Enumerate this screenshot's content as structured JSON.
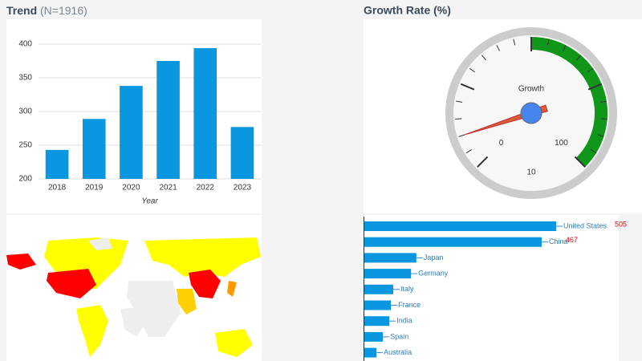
{
  "header": {
    "trend_title": "Trend",
    "trend_count": "(N=1916)",
    "growth_title": "Growth Rate (%)"
  },
  "chart_data": [
    {
      "type": "bar",
      "x_label": "Year",
      "categories": [
        "2018",
        "2019",
        "2020",
        "2021",
        "2022",
        "2023"
      ],
      "values": [
        243,
        289,
        338,
        375,
        394,
        277
      ],
      "color": "#0a97df",
      "ylim": [
        200,
        400
      ],
      "yticks": [
        200,
        250,
        300,
        350,
        400
      ],
      "grid": true
    },
    {
      "type": "gauge",
      "label": "Growth",
      "value": 10,
      "lim": [
        0,
        100
      ],
      "ticks": [
        0,
        100
      ],
      "bands": [
        {
          "from": 50,
          "to": 100,
          "color": "#109618"
        }
      ],
      "needle_color": "#dc5a36"
    },
    {
      "type": "hbar",
      "categories": [
        "United States",
        "China",
        "Japan",
        "Germany",
        "Italy",
        "France",
        "India",
        "Spain",
        "Australia"
      ],
      "values": [
        505,
        467,
        137,
        123,
        76,
        70,
        66,
        49,
        32
      ],
      "value_labels": [
        "505",
        "467",
        null,
        null,
        null,
        null,
        null,
        null,
        null
      ],
      "color": "#0a97df"
    }
  ]
}
